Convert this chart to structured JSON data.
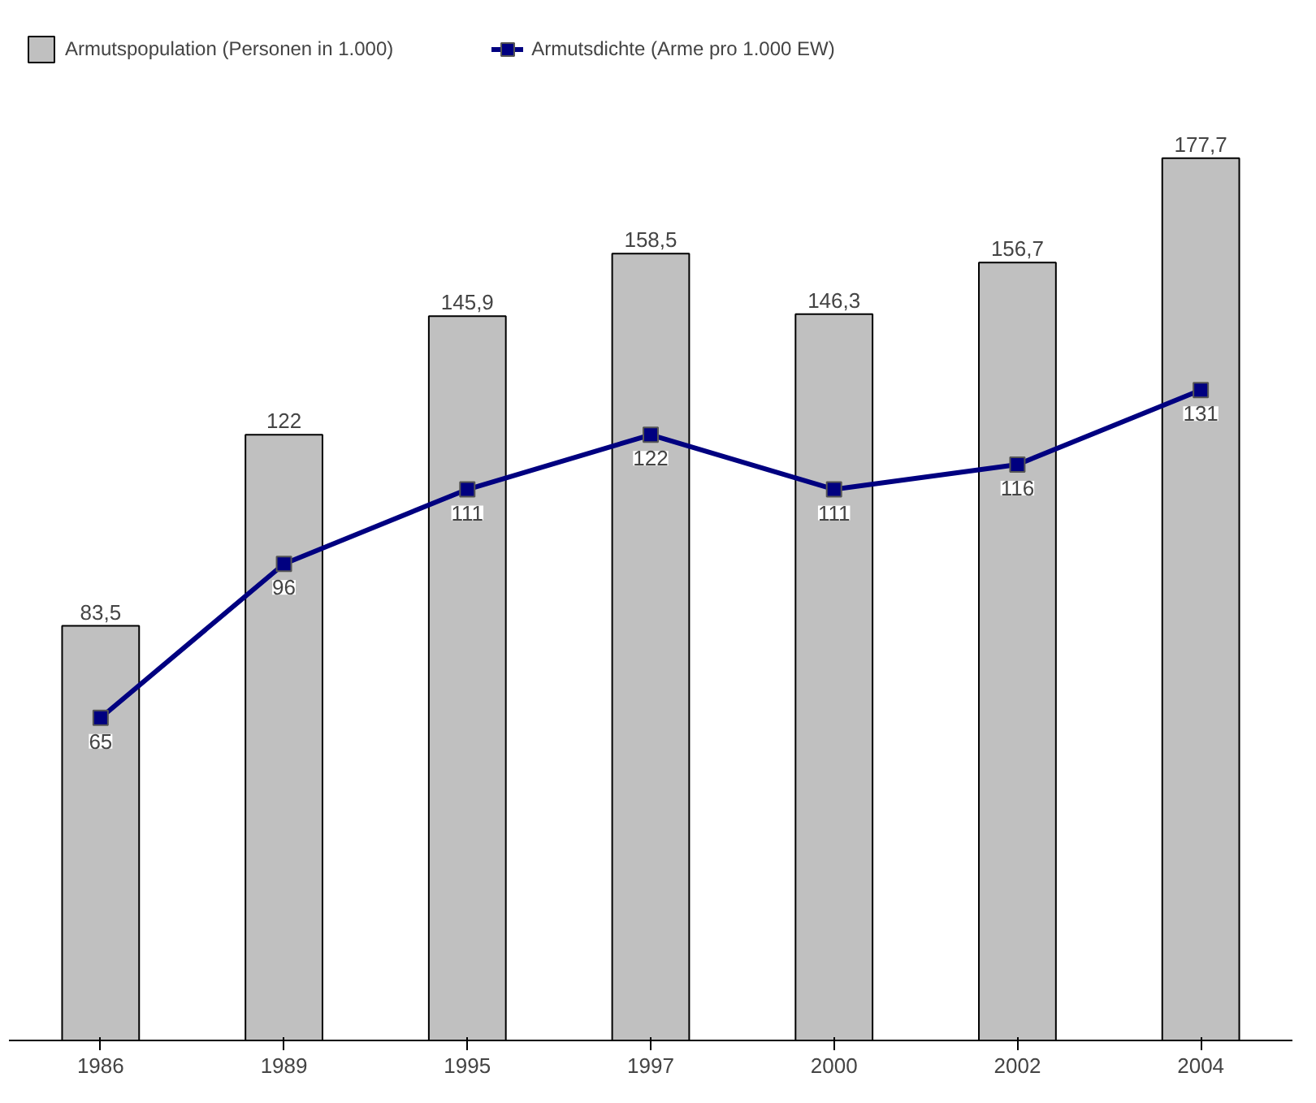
{
  "chart_data": {
    "type": "bar",
    "categories": [
      "1986",
      "1989",
      "1995",
      "1997",
      "2000",
      "2002",
      "2004"
    ],
    "relative": false,
    "series": [
      {
        "name": "Armutspopulation (Personen in 1.000)",
        "color": "#c0c0c0",
        "values": [
          83.5,
          122,
          145.9,
          158.5,
          146.3,
          156.7,
          177.7
        ],
        "value_labels": [
          "83,5",
          "122",
          "145,9",
          "158,5",
          "146,3",
          "156,7",
          "177,7"
        ]
      },
      {
        "name": "Armutsdichte (Arme pro 1.000 EW)",
        "type": "line",
        "color": "#000080",
        "values": [
          65,
          96,
          111,
          122,
          111,
          116,
          131
        ],
        "value_labels": [
          "65",
          "96",
          "111",
          "122",
          "111",
          "116",
          "131"
        ]
      }
    ],
    "marker": "square",
    "line_style": "solid",
    "legend": "top",
    "grid": false,
    "tick_labels": "x"
  }
}
